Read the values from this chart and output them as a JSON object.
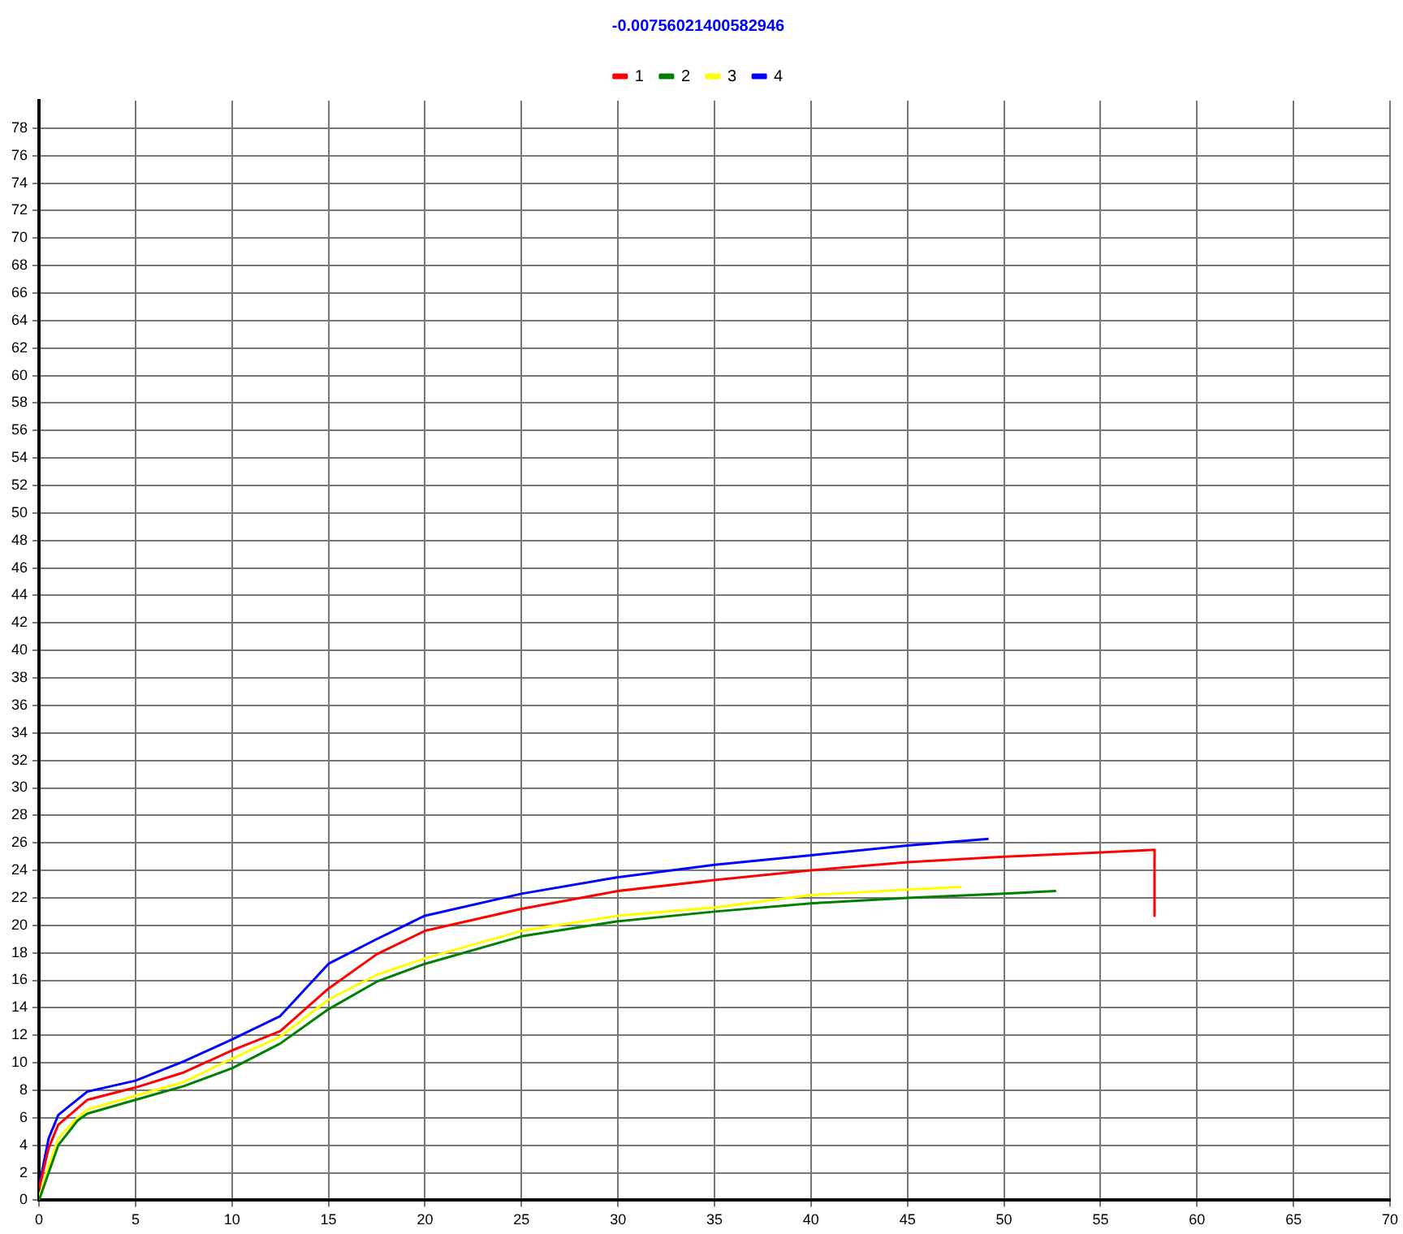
{
  "chart_data": {
    "type": "line",
    "title": "-0.00756021400582946",
    "xlim": [
      0,
      70
    ],
    "xticks": [
      0,
      5,
      10,
      15,
      20,
      25,
      30,
      35,
      40,
      45,
      50,
      55,
      60,
      65,
      70
    ],
    "ylim": [
      0,
      80
    ],
    "yticks": [
      0,
      2,
      4,
      6,
      8,
      10,
      12,
      14,
      16,
      18,
      20,
      22,
      24,
      26,
      28,
      30,
      32,
      34,
      36,
      38,
      40,
      42,
      44,
      46,
      48,
      50,
      52,
      54,
      56,
      58,
      60,
      62,
      64,
      66,
      68,
      70,
      72,
      74,
      76,
      78
    ],
    "grid": true,
    "legend": "top",
    "marker": "none",
    "line_style": "solid",
    "series": [
      {
        "name": "1",
        "color": "#ff0000",
        "x": [
          0,
          0.5,
          1,
          2.5,
          5,
          7.5,
          10,
          12.5,
          15,
          17.5,
          20,
          25,
          30,
          35,
          40,
          45,
          50,
          55,
          57.8,
          57.8
        ],
        "values": [
          0.8,
          3.8,
          5.5,
          7.3,
          8.2,
          9.3,
          10.9,
          12.3,
          15.4,
          17.9,
          19.6,
          21.2,
          22.5,
          23.3,
          24,
          24.6,
          25,
          25.3,
          25.5,
          20.7
        ]
      },
      {
        "name": "2",
        "color": "#008000",
        "x": [
          0,
          0.5,
          1,
          2,
          2.5,
          5,
          7.5,
          10,
          12.5,
          15,
          17.5,
          20,
          25,
          30,
          35,
          40,
          45,
          50,
          52.7
        ],
        "values": [
          0,
          2,
          4,
          5.8,
          6.3,
          7.3,
          8.3,
          9.6,
          11.4,
          13.9,
          15.9,
          17.2,
          19.2,
          20.3,
          21,
          21.6,
          22,
          22.3,
          22.5
        ]
      },
      {
        "name": "3",
        "color": "#ffff00",
        "x": [
          0,
          0.5,
          1,
          2,
          2.5,
          5,
          7.5,
          10,
          12.5,
          15,
          17.5,
          20,
          25,
          30,
          35,
          40,
          45,
          47.8
        ],
        "values": [
          0.2,
          2.5,
          4.5,
          6,
          6.6,
          7.6,
          8.6,
          10.3,
          11.9,
          14.6,
          16.4,
          17.6,
          19.6,
          20.7,
          21.3,
          22.2,
          22.6,
          22.8
        ]
      },
      {
        "name": "4",
        "color": "#0000ff",
        "x": [
          0,
          0.5,
          1,
          2.5,
          5,
          7.5,
          10,
          12.5,
          15,
          17.5,
          20,
          25,
          30,
          35,
          40,
          45,
          49.2
        ],
        "values": [
          1,
          4.5,
          6.2,
          7.9,
          8.7,
          10.1,
          11.7,
          13.4,
          17.2,
          19,
          20.7,
          22.3,
          23.5,
          24.4,
          25.1,
          25.8,
          26.3
        ]
      }
    ]
  }
}
